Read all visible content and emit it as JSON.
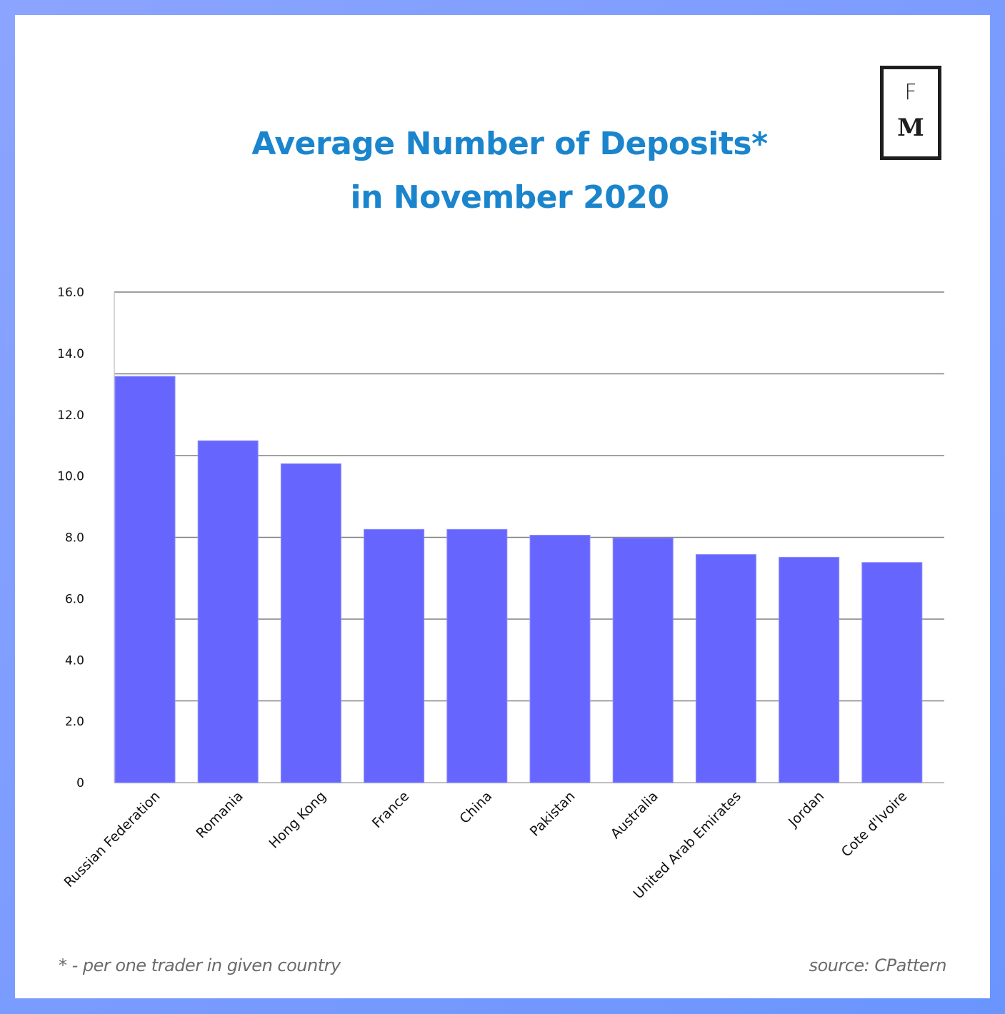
{
  "header": {
    "title_line1": "Average Number of Deposits*",
    "title_line2": "in November 2020",
    "logo_letter_top": "F",
    "logo_letter_bottom": "M"
  },
  "footer": {
    "note": "* - per one trader in given country",
    "source": "source: CPattern"
  },
  "colors": {
    "bar": "#6666ff",
    "title": "#1a85cc",
    "frame": "#7b9cff",
    "grid": "#808080"
  },
  "chart_data": {
    "type": "bar",
    "title": "Average Number of Deposits* in November 2020",
    "xlabel": "",
    "ylabel": "",
    "ylim": [
      0,
      16
    ],
    "grid": true,
    "legend": "none",
    "yticks": [
      "0",
      "2.0",
      "4.0",
      "6.0",
      "8.0",
      "10.0",
      "12.0",
      "14.0",
      "16.0"
    ],
    "categories": [
      "Russian Federation",
      "Romania",
      "Hong Kong",
      "France",
      "China",
      "Pakistan",
      "Australia",
      "United Arab Emirates",
      "Jordan",
      "Cote d'Ivoire"
    ],
    "values": [
      13.25,
      11.15,
      10.4,
      8.26,
      8.26,
      8.07,
      7.98,
      7.44,
      7.35,
      7.18
    ]
  }
}
